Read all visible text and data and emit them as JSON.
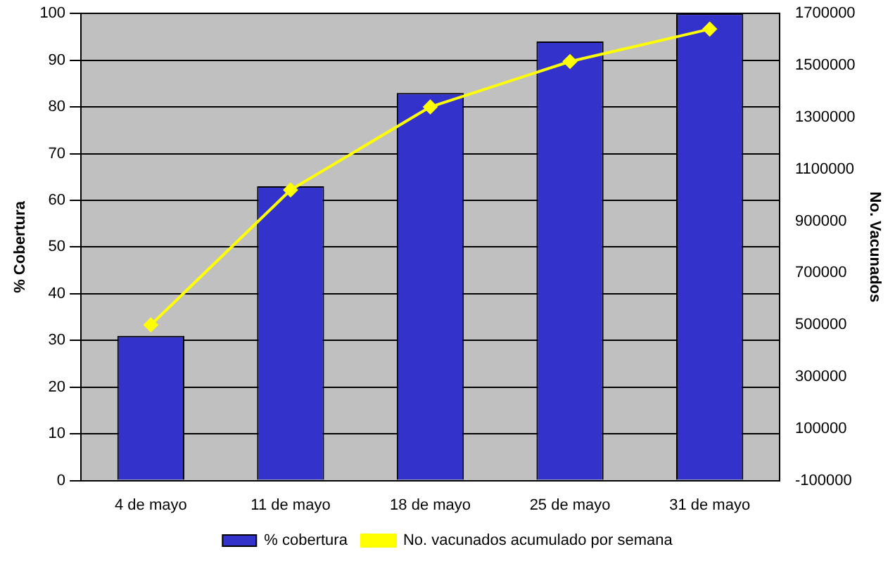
{
  "chart_data": {
    "type": "bar",
    "categories": [
      "4 de mayo",
      "11 de mayo",
      "18 de mayo",
      "25 de mayo",
      "31 de mayo"
    ],
    "series": [
      {
        "name": "% cobertura",
        "color": "#3333cc",
        "values": [
          31,
          63,
          83,
          94,
          100
        ]
      },
      {
        "name": "No. vacunados acumulado por semana",
        "type": "line",
        "axis": "y2",
        "color": "#ffff00",
        "values": [
          500000,
          1020000,
          1340000,
          1515000,
          1640000
        ]
      }
    ],
    "ylabel": "% Cobertura",
    "y2label": "No. Vacunados",
    "ylim": [
      0,
      100
    ],
    "yticks": [
      0,
      10,
      20,
      30,
      40,
      50,
      60,
      70,
      80,
      90,
      100
    ],
    "y2lim": [
      -100000,
      1700000
    ],
    "y2ticks": [
      -100000,
      100000,
      300000,
      500000,
      700000,
      900000,
      1100000,
      1300000,
      1500000,
      1700000
    ],
    "grid": "y",
    "legend": "bottom",
    "marker": "diamond",
    "line_style": "solid"
  }
}
